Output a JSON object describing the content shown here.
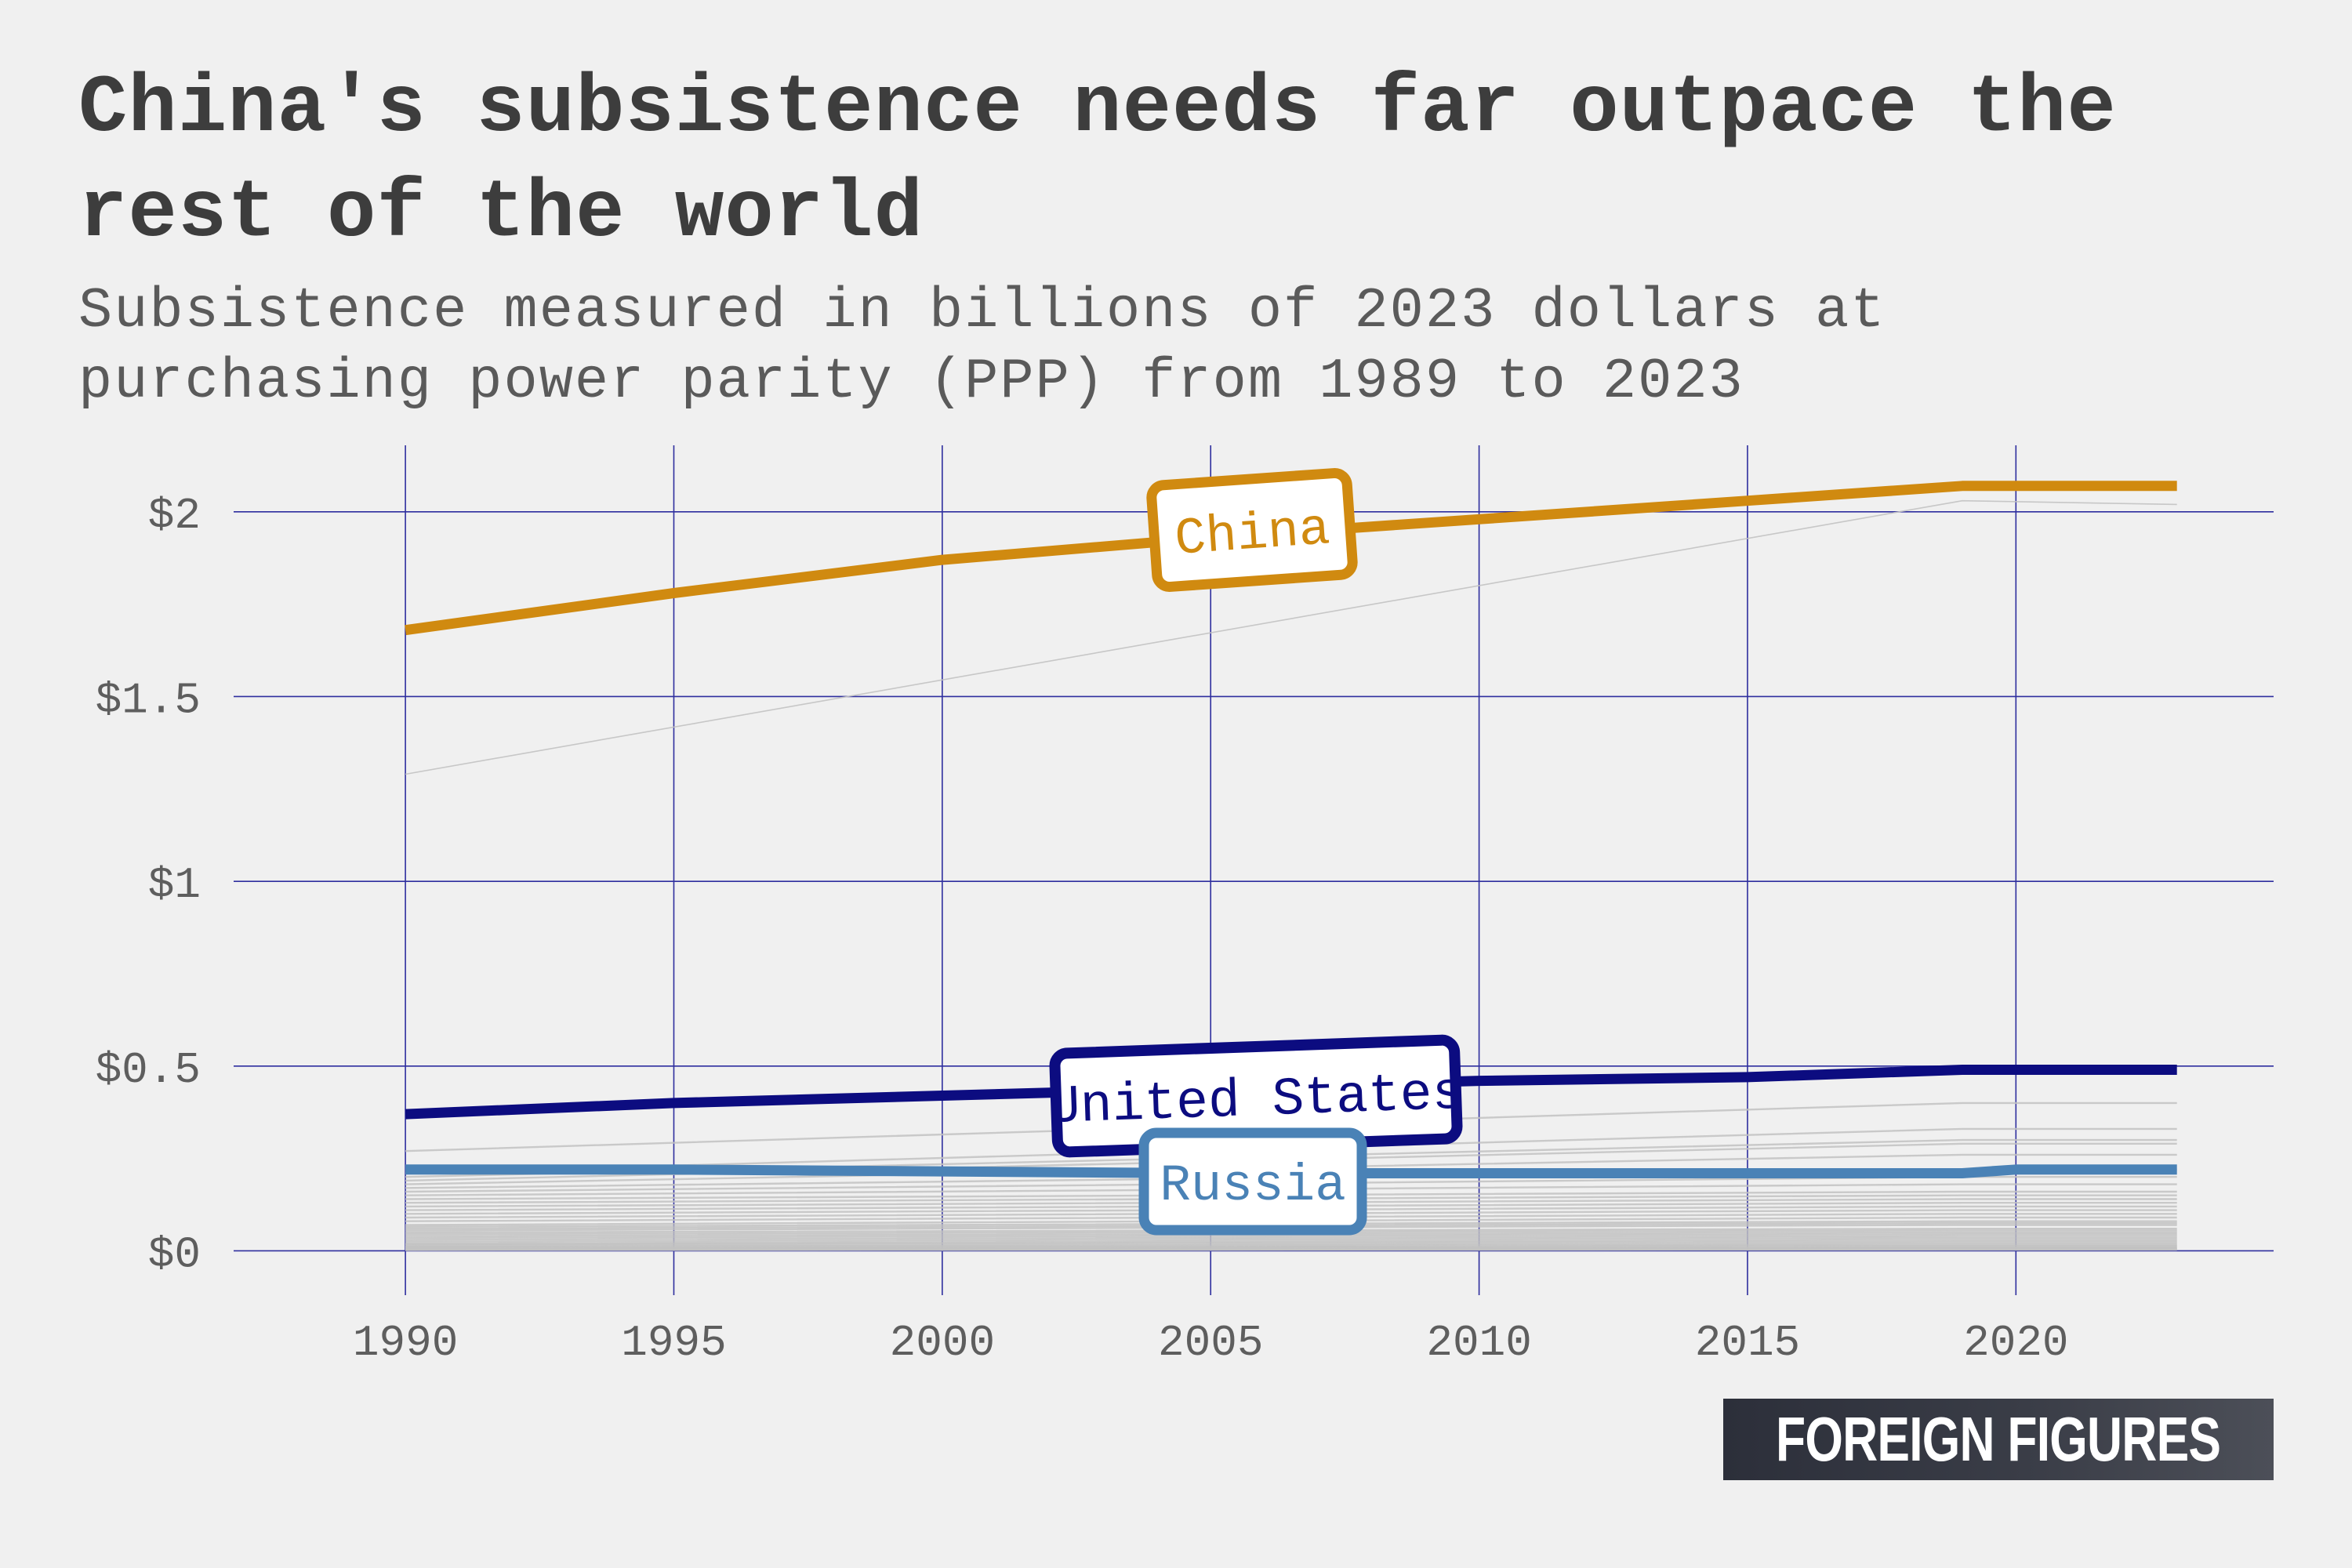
{
  "title": "China's subsistence needs far outpace the rest of the world",
  "subtitle": "Subsistence measured in billions of 2023 dollars at purchasing power parity (PPP) from 1989 to 2023",
  "logo_text": "FOREIGN FIGURES",
  "colors": {
    "background": "#f0f0f0",
    "grid": "#2e2e9e",
    "china": "#d08a10",
    "united_states": "#0c0c80",
    "russia": "#4a82b6",
    "other_countries": "#c2c2c2",
    "text": "#3d3d3d"
  },
  "chart_data": {
    "type": "line",
    "title": "China's subsistence needs far outpace the rest of the world",
    "subtitle": "Subsistence measured in billions of 2023 dollars at purchasing power parity (PPP) from 1989 to 2023",
    "xlabel": "",
    "ylabel": "",
    "xlim": [
      1986.8,
      2024.8
    ],
    "ylim": [
      -0.12,
      2.18
    ],
    "x_ticks": [
      1990,
      1995,
      2000,
      2005,
      2010,
      2015,
      2020
    ],
    "x_tick_labels": [
      "1990",
      "1995",
      "2000",
      "2005",
      "2010",
      "2015",
      "2020"
    ],
    "y_ticks": [
      0,
      0.5,
      1,
      1.5,
      2
    ],
    "y_tick_labels": [
      "$0",
      "$0.5",
      "$1",
      "$1.5",
      "$2"
    ],
    "grid": true,
    "legend": "inline labels on lines",
    "highlighted_series": [
      {
        "name": "China",
        "color": "#d08a10",
        "x": [
          1990,
          1995,
          2000,
          2005,
          2010,
          2015,
          2019,
          2023
        ],
        "y": [
          1.68,
          1.78,
          1.87,
          1.93,
          1.98,
          2.03,
          2.07,
          2.07
        ]
      },
      {
        "name": "United States",
        "color": "#0c0c80",
        "x": [
          1990,
          1995,
          2000,
          2005,
          2010,
          2015,
          2019,
          2023
        ],
        "y": [
          0.37,
          0.4,
          0.42,
          0.44,
          0.46,
          0.47,
          0.49,
          0.49
        ]
      },
      {
        "name": "Russia",
        "color": "#4a82b6",
        "x": [
          1990,
          1995,
          2000,
          2005,
          2010,
          2015,
          2019,
          2020,
          2023
        ],
        "y": [
          0.22,
          0.22,
          0.215,
          0.21,
          0.21,
          0.21,
          0.21,
          0.22,
          0.22
        ]
      }
    ],
    "background_series": [
      {
        "x": [
          1990,
          2019,
          2023
        ],
        "y": [
          1.29,
          2.03,
          2.02
        ]
      },
      {
        "x": [
          1990,
          2019,
          2023
        ],
        "y": [
          0.27,
          0.4,
          0.4
        ]
      },
      {
        "x": [
          1990,
          2019,
          2023
        ],
        "y": [
          0.21,
          0.33,
          0.33
        ]
      },
      {
        "x": [
          1990,
          2019,
          2023
        ],
        "y": [
          0.2,
          0.3,
          0.3
        ]
      },
      {
        "x": [
          1990,
          2019,
          2023
        ],
        "y": [
          0.19,
          0.29,
          0.29
        ]
      },
      {
        "x": [
          1990,
          2019,
          2023
        ],
        "y": [
          0.18,
          0.26,
          0.26
        ]
      },
      {
        "x": [
          1990,
          2019,
          2023
        ],
        "y": [
          0.17,
          0.22,
          0.22
        ]
      },
      {
        "x": [
          1990,
          2019,
          2023
        ],
        "y": [
          0.16,
          0.2,
          0.2
        ]
      },
      {
        "x": [
          1990,
          2019,
          2023
        ],
        "y": [
          0.15,
          0.18,
          0.18
        ]
      },
      {
        "x": [
          1990,
          2019,
          2023
        ],
        "y": [
          0.14,
          0.16,
          0.16
        ]
      },
      {
        "x": [
          1990,
          2019,
          2023
        ],
        "y": [
          0.13,
          0.15,
          0.15
        ]
      },
      {
        "x": [
          1990,
          2019,
          2023
        ],
        "y": [
          0.12,
          0.14,
          0.14
        ]
      },
      {
        "x": [
          1990,
          2019,
          2023
        ],
        "y": [
          0.11,
          0.13,
          0.13
        ]
      },
      {
        "x": [
          1990,
          2019,
          2023
        ],
        "y": [
          0.1,
          0.12,
          0.12
        ]
      },
      {
        "x": [
          1990,
          2019,
          2023
        ],
        "y": [
          0.09,
          0.11,
          0.11
        ]
      },
      {
        "x": [
          1990,
          2019,
          2023
        ],
        "y": [
          0.08,
          0.1,
          0.1
        ]
      },
      {
        "x": [
          1990,
          2019,
          2023
        ],
        "y": [
          0.07,
          0.09,
          0.09
        ]
      },
      {
        "x": [
          1990,
          2019,
          2023
        ],
        "y": [
          0.065,
          0.08,
          0.08
        ]
      },
      {
        "x": [
          1990,
          2019,
          2023
        ],
        "y": [
          0.06,
          0.075,
          0.075
        ]
      },
      {
        "x": [
          1990,
          2019,
          2023
        ],
        "y": [
          0.055,
          0.07,
          0.07
        ]
      },
      {
        "x": [
          1990,
          2019,
          2023
        ],
        "y": [
          0.05,
          0.06,
          0.06
        ]
      },
      {
        "x": [
          1990,
          2019,
          2023
        ],
        "y": [
          0.045,
          0.055,
          0.055
        ]
      },
      {
        "x": [
          1990,
          2019,
          2023
        ],
        "y": [
          0.04,
          0.05,
          0.05
        ]
      },
      {
        "x": [
          1990,
          2019,
          2023
        ],
        "y": [
          0.035,
          0.045,
          0.045
        ]
      },
      {
        "x": [
          1990,
          2019,
          2023
        ],
        "y": [
          0.03,
          0.04,
          0.04
        ]
      },
      {
        "x": [
          1990,
          2019,
          2023
        ],
        "y": [
          0.025,
          0.035,
          0.035
        ]
      },
      {
        "x": [
          1990,
          2019,
          2023
        ],
        "y": [
          0.02,
          0.03,
          0.03
        ]
      },
      {
        "x": [
          1990,
          2019,
          2023
        ],
        "y": [
          0.018,
          0.025,
          0.025
        ]
      },
      {
        "x": [
          1990,
          2019,
          2023
        ],
        "y": [
          0.015,
          0.02,
          0.02
        ]
      },
      {
        "x": [
          1990,
          2019,
          2023
        ],
        "y": [
          0.012,
          0.016,
          0.016
        ]
      },
      {
        "x": [
          1990,
          2019,
          2023
        ],
        "y": [
          0.01,
          0.013,
          0.013
        ]
      },
      {
        "x": [
          1990,
          2019,
          2023
        ],
        "y": [
          0.008,
          0.01,
          0.01
        ]
      },
      {
        "x": [
          1990,
          2019,
          2023
        ],
        "y": [
          0.006,
          0.008,
          0.008
        ]
      },
      {
        "x": [
          1990,
          2019,
          2023
        ],
        "y": [
          0.004,
          0.006,
          0.006
        ]
      },
      {
        "x": [
          1990,
          2019,
          2023
        ],
        "y": [
          0.003,
          0.004,
          0.004
        ]
      },
      {
        "x": [
          1990,
          2019,
          2023
        ],
        "y": [
          0.002,
          0.003,
          0.003
        ]
      }
    ],
    "labels": [
      {
        "series": "China",
        "text": "China"
      },
      {
        "series": "United States",
        "text": "United States"
      },
      {
        "series": "Russia",
        "text": "Russia"
      }
    ]
  }
}
